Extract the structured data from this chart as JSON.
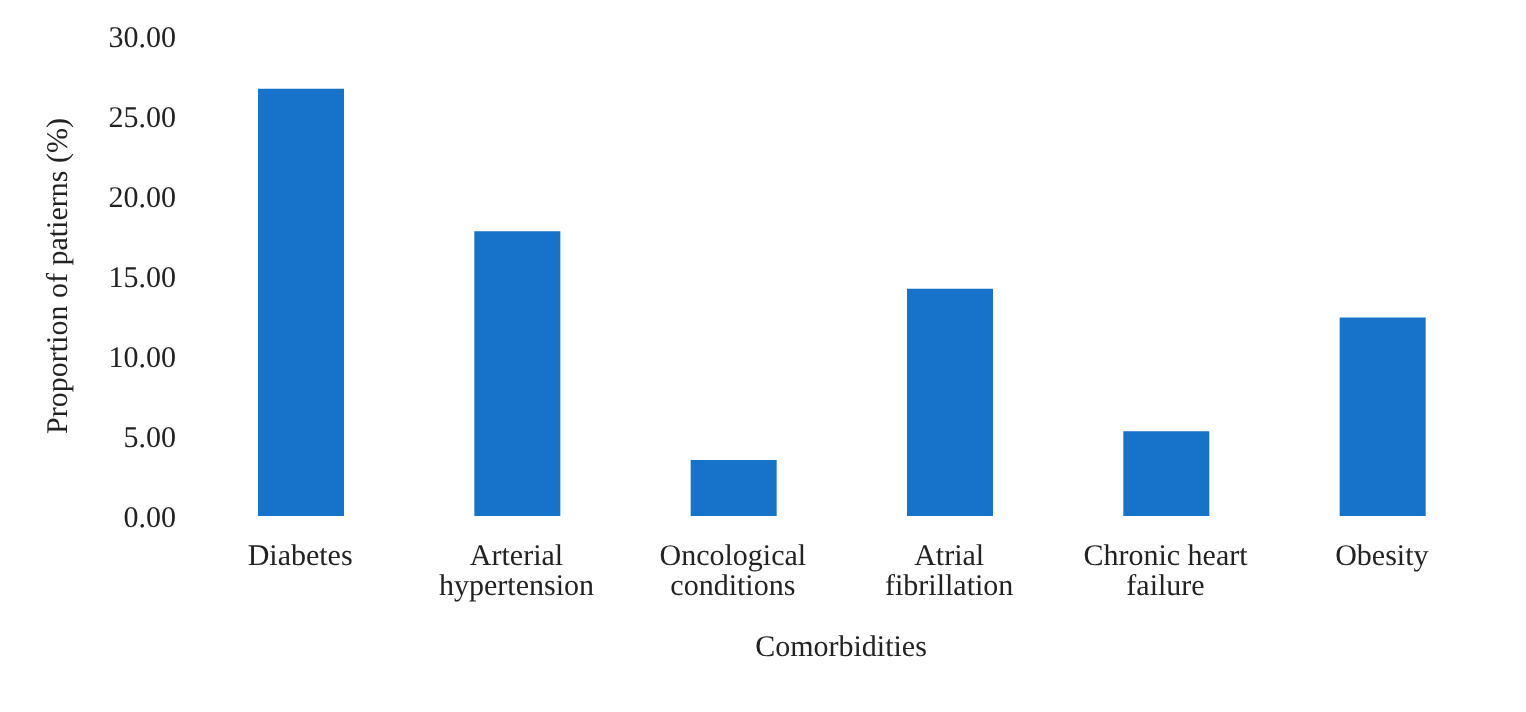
{
  "chart_data": {
    "type": "bar",
    "xlabel": "Comorbidities",
    "ylabel": "Proportion of patierns (%)",
    "categories": [
      "Diabetes",
      "Arterial hypertension",
      "Oncological conditions",
      "Atrial fibrillation",
      "Chronic heart failure",
      "Obesity"
    ],
    "values": [
      26.7,
      17.8,
      3.5,
      14.2,
      5.3,
      12.4
    ],
    "color": "#1772c9",
    "ylim": [
      0,
      30
    ],
    "yticks": [
      {
        "value": 0,
        "label": "0.00"
      },
      {
        "value": 5,
        "label": "5.00"
      },
      {
        "value": 10,
        "label": "10.00"
      },
      {
        "value": 15,
        "label": "15.00"
      },
      {
        "value": 20,
        "label": "20.00"
      },
      {
        "value": 25,
        "label": "25.00"
      },
      {
        "value": 30,
        "label": "30.00"
      }
    ],
    "grid": false,
    "legend": false
  }
}
